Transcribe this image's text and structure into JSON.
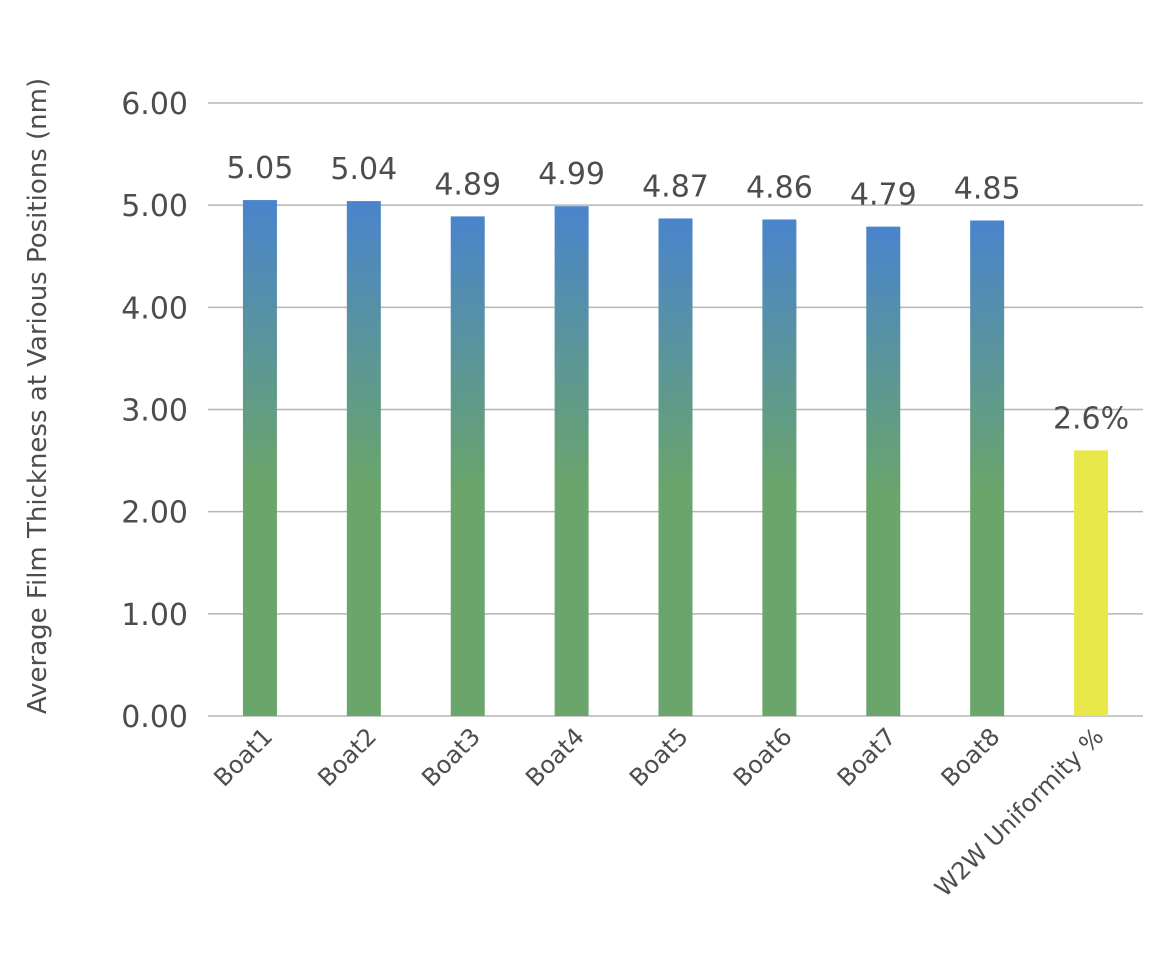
{
  "chart_data": {
    "type": "bar",
    "ylabel": "Average Film Thickness at Various Positions (nm)",
    "ylim": [
      0,
      6
    ],
    "yticks": [
      "0.00",
      "1.00",
      "2.00",
      "3.00",
      "4.00",
      "5.00",
      "6.00"
    ],
    "grid": true,
    "categories": [
      "Boat1",
      "Boat2",
      "Boat3",
      "Boat4",
      "Boat5",
      "Boat6",
      "Boat7",
      "Boat8",
      "W2W Uniformity %"
    ],
    "values": [
      5.05,
      5.04,
      4.89,
      4.99,
      4.87,
      4.86,
      4.79,
      4.85,
      2.6
    ],
    "data_labels": [
      "5.05",
      "5.04",
      "4.89",
      "4.99",
      "4.87",
      "4.86",
      "4.79",
      "4.85",
      "2.6%"
    ],
    "colors": {
      "bar_gradient_top": "#4a84cc",
      "bar_gradient_bottom": "#6aa56b",
      "highlight_bar": "#e8e84a"
    }
  }
}
